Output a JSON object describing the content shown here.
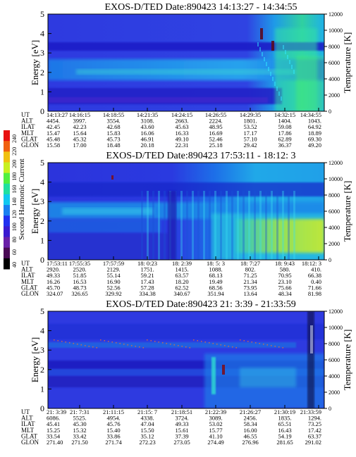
{
  "chart_data": [
    {
      "type": "heatmap",
      "title": "EXOS-D/TED   Date:890423  14:13:27 - 14:34:55",
      "ylabel": "Energy [eV]",
      "y2label": "Temperature [K]",
      "ylim": [
        0,
        5
      ],
      "y2lim": [
        0,
        12000
      ],
      "yticks": [
        "0",
        "1",
        "2",
        "3",
        "4",
        "5"
      ],
      "y2ticks": [
        "0",
        "2000",
        "4000",
        "6000",
        "8000",
        "10000",
        "12000"
      ],
      "orbit_rows": [
        "UT",
        "ALT",
        "ILAT",
        "MLT",
        "GLAT",
        "GLON"
      ],
      "orbit_cols": [
        [
          "14:13:27",
          "4454.",
          "42.45",
          "15.47",
          "45.48",
          "15.58"
        ],
        [
          "14:16:15",
          "3997.",
          "42.23",
          "15.64",
          "45.32",
          "17.00"
        ],
        [
          "14:18:55",
          "3554.",
          "42.68",
          "15.83",
          "45.73",
          "18.48"
        ],
        [
          "14:21:35",
          "3108.",
          "43.60",
          "16.06",
          "46.91",
          "20.18"
        ],
        [
          "14:24:15",
          "2663.",
          "45.63",
          "16.33",
          "49.10",
          "22.31"
        ],
        [
          "14:26:55",
          "2224.",
          "48.95",
          "16.69",
          "52.46",
          "25.18"
        ],
        [
          "14:29:35",
          "1801.",
          "53.52",
          "17.17",
          "57.10",
          "29.42"
        ],
        [
          "14:32:15",
          "1404.",
          "59.08",
          "17.86",
          "62.89",
          "36.37"
        ],
        [
          "14:34:55",
          "1043.",
          "64.92",
          "18.89",
          "69.30",
          "49.20"
        ]
      ],
      "background_color": "#2e3ae0"
    },
    {
      "type": "heatmap",
      "title": "EXOS-D/TED   Date:890423  17:53:11 - 18:12: 3",
      "ylabel": "Energy [eV]",
      "y2label": "Temperature [K]",
      "ylim": [
        0,
        5
      ],
      "y2lim": [
        0,
        12000
      ],
      "yticks": [
        "0",
        "1",
        "2",
        "3",
        "4",
        "5"
      ],
      "y2ticks": [
        "0",
        "2000",
        "4000",
        "6000",
        "8000",
        "10000",
        "12000"
      ],
      "orbit_rows": [
        "UT",
        "ALT",
        "ILAT",
        "MLT",
        "GLAT",
        "GLON"
      ],
      "orbit_cols": [
        [
          "17:53:11",
          "2920.",
          "49.33",
          "16.26",
          "45.70",
          "324.07"
        ],
        [
          "17:55:35",
          "2520.",
          "51.85",
          "16.53",
          "48.73",
          "326.65"
        ],
        [
          "17:57:59",
          "2129.",
          "55.14",
          "16.90",
          "52.56",
          "329.92"
        ],
        [
          "18: 0:23",
          "1751.",
          "59.21",
          "17.43",
          "57.28",
          "334.38"
        ],
        [
          "18: 2:39",
          "1415.",
          "63.57",
          "18.20",
          "62.52",
          "340.67"
        ],
        [
          "18: 5: 3",
          "1088.",
          "68.13",
          "19.49",
          "68.56",
          "351.94"
        ],
        [
          "18: 7:27",
          "802.",
          "71.25",
          "21.34",
          "73.95",
          "13.64"
        ],
        [
          "18: 9:43",
          "580.",
          "70.95",
          "23.10",
          "75.66",
          "48.34"
        ],
        [
          "18:12: 3",
          "410.",
          "66.38",
          "0.40",
          "71.66",
          "81.98"
        ]
      ],
      "background_color": "#2e3ae0"
    },
    {
      "type": "heatmap",
      "title": "EXOS-D/TED   Date:890423  21: 3:39 - 21:33:59",
      "ylabel": "Energy [eV]",
      "y2label": "Temperature [K]",
      "ylim": [
        0,
        5
      ],
      "y2lim": [
        0,
        12000
      ],
      "yticks": [
        "0",
        "1",
        "2",
        "3",
        "4",
        "5"
      ],
      "y2ticks": [
        "0",
        "2000",
        "4000",
        "6000",
        "8000",
        "10000",
        "12000"
      ],
      "orbit_rows": [
        "UT",
        "ALT",
        "ILAT",
        "MLT",
        "GLAT",
        "GLON"
      ],
      "orbit_cols": [
        [
          "21: 3:39",
          "6086.",
          "45.41",
          "15.25",
          "33.54",
          "271.40"
        ],
        [
          "21: 7:31",
          "5525.",
          "45.30",
          "15.32",
          "33.42",
          "271.50"
        ],
        [
          "21:11:15",
          "4954.",
          "45.76",
          "15.40",
          "33.86",
          "271.74"
        ],
        [
          "21:15: 7",
          "4338.",
          "47.04",
          "15.50",
          "35.12",
          "272.23"
        ],
        [
          "21:18:51",
          "3724.",
          "49.33",
          "15.61",
          "37.39",
          "273.05"
        ],
        [
          "21:22:39",
          "3089.",
          "53.02",
          "15.77",
          "41.10",
          "274.49"
        ],
        [
          "21:26:27",
          "2456.",
          "58.34",
          "16.00",
          "46.55",
          "276.96"
        ],
        [
          "21:30:19",
          "1835.",
          "65.51",
          "16.43",
          "54.19",
          "281.65"
        ],
        [
          "21:33:59",
          "1294.",
          "73.25",
          "17.42",
          "63.37",
          "291.02"
        ]
      ],
      "background_color": "#2e3ae0"
    }
  ],
  "colorbar": {
    "label": "Second Harmonic Current",
    "ticks": [
      "40",
      "60",
      "80",
      "100",
      "120",
      "140",
      "160",
      "180",
      "200",
      "220",
      "240"
    ],
    "colors": [
      "#000000",
      "#4a0a55",
      "#6a20a8",
      "#3a1ad0",
      "#2030f0",
      "#1a80f0",
      "#10c8f0",
      "#20e0a0",
      "#50f040",
      "#c8f020",
      "#f0c010",
      "#f06010",
      "#e81010"
    ]
  }
}
